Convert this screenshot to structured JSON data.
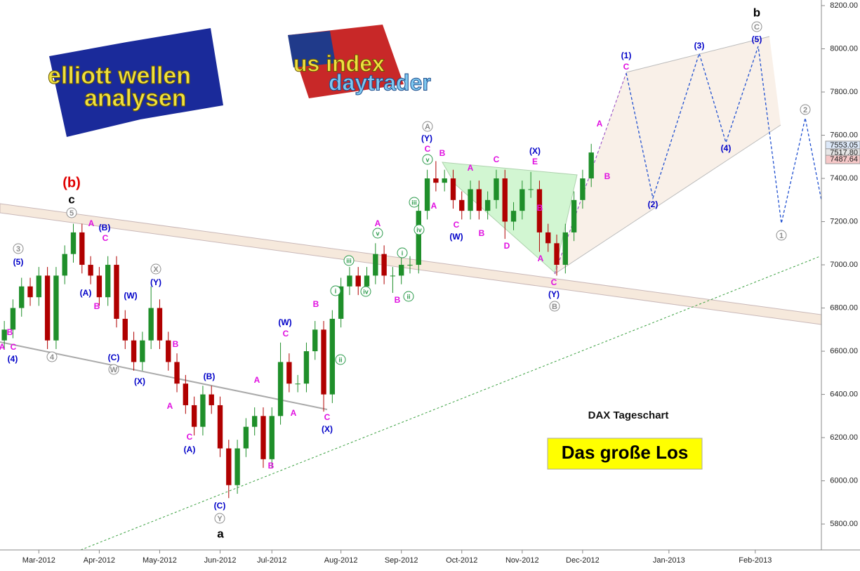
{
  "chart_data": {
    "type": "candlestick",
    "title": "DAX Tageschart",
    "headline": "Das große Los",
    "logos": [
      "elliott wellen",
      "analysen",
      "us index",
      "daytrader"
    ],
    "categories": [
      null,
      null,
      null,
      null,
      "Mar-2012",
      null,
      null,
      null,
      null,
      null,
      null,
      "Apr-2012",
      null,
      null,
      null,
      null,
      null,
      null,
      "May-2012",
      null,
      null,
      null,
      null,
      null,
      null,
      "Jun-2012",
      null,
      null,
      null,
      null,
      null,
      "Jul-2012",
      null,
      null,
      null,
      null,
      null,
      null,
      null,
      "Aug-2012",
      null,
      null,
      null,
      null,
      null,
      null,
      "Sep-2012",
      null,
      null,
      null,
      null,
      null,
      null,
      "Oct-2012",
      null,
      null,
      null,
      null,
      null,
      null,
      "Nov-2012",
      null,
      null,
      null,
      null,
      null,
      null,
      "Dec-2012",
      null,
      null,
      null,
      null,
      null,
      null,
      null,
      null,
      null,
      "Jan-2013",
      null,
      null,
      null,
      null,
      null,
      null,
      null,
      null,
      null,
      "Feb-2013",
      null,
      null,
      null,
      null,
      null,
      null,
      null
    ],
    "open": [
      6650,
      6700,
      6800,
      6900,
      6850,
      6950,
      6650,
      6950,
      7050,
      7150,
      7000,
      6950,
      6850,
      7000,
      6750,
      6650,
      6550,
      6650,
      6800,
      6650,
      6550,
      6450,
      6350,
      6250,
      6400,
      6350,
      6150,
      5980,
      6150,
      6250,
      6300,
      6100,
      6300,
      6550,
      6450,
      6450,
      6600,
      6700,
      6400,
      6750,
      6900,
      6950,
      6900,
      6950,
      7050,
      6950,
      6950,
      7000,
      7000,
      7250,
      7400,
      7380,
      7400,
      7300,
      7250,
      7350,
      7250,
      7300,
      7400,
      7200,
      7250,
      7350,
      7350,
      7150,
      7100,
      7000,
      7150,
      7300,
      7400,
      null,
      null,
      null,
      null,
      null,
      null,
      null,
      null,
      null,
      null,
      null,
      null,
      null,
      null,
      null,
      null,
      null,
      null,
      null,
      null,
      null,
      null,
      null,
      null,
      null,
      null
    ],
    "high": [
      6740,
      6840,
      6940,
      6940,
      6990,
      6990,
      6990,
      7090,
      7190,
      7190,
      7040,
      6990,
      7040,
      7040,
      6790,
      6690,
      6690,
      6900,
      6840,
      6690,
      6590,
      6490,
      6390,
      6440,
      6440,
      6390,
      6190,
      6190,
      6290,
      6340,
      6340,
      6340,
      6640,
      6590,
      6490,
      6640,
      6740,
      6740,
      6790,
      6940,
      6990,
      6990,
      6990,
      7100,
      7090,
      6990,
      7040,
      7040,
      7290,
      7440,
      7480,
      7440,
      7440,
      7340,
      7390,
      7390,
      7340,
      7440,
      7440,
      7290,
      7390,
      7430,
      7390,
      7190,
      7140,
      7190,
      7340,
      7440,
      7560,
      null,
      null,
      null,
      null,
      null,
      null,
      null,
      null,
      null,
      null,
      null,
      null,
      null,
      null,
      null,
      null,
      null,
      null,
      null,
      null,
      null,
      null,
      null,
      null,
      null,
      null
    ],
    "low": [
      6610,
      6660,
      6760,
      6810,
      6810,
      6610,
      6610,
      6910,
      7010,
      6960,
      6910,
      6810,
      6810,
      6710,
      6610,
      6510,
      6510,
      6610,
      6610,
      6510,
      6410,
      6310,
      6210,
      6210,
      6310,
      6110,
      5920,
      5940,
      6110,
      6210,
      6060,
      6060,
      6260,
      6410,
      6410,
      6410,
      6560,
      6320,
      6360,
      6710,
      6860,
      6860,
      6860,
      6910,
      6910,
      6870,
      6910,
      6960,
      6960,
      7210,
      7340,
      7340,
      7260,
      7210,
      7210,
      7210,
      7210,
      7260,
      7120,
      7160,
      7210,
      7310,
      7060,
      7060,
      6950,
      6960,
      7110,
      7260,
      7360,
      null,
      null,
      null,
      null,
      null,
      null,
      null,
      null,
      null,
      null,
      null,
      null,
      null,
      null,
      null,
      null,
      null,
      null,
      null,
      null,
      null,
      null,
      null,
      null,
      null,
      null
    ],
    "close": [
      6700,
      6800,
      6900,
      6850,
      6950,
      6650,
      6950,
      7050,
      7150,
      7000,
      6950,
      6850,
      7000,
      6750,
      6650,
      6550,
      6650,
      6800,
      6650,
      6550,
      6450,
      6350,
      6250,
      6400,
      6350,
      6150,
      5980,
      6150,
      6250,
      6300,
      6100,
      6300,
      6550,
      6450,
      6450,
      6600,
      6700,
      6400,
      6750,
      6900,
      6950,
      6900,
      6950,
      7050,
      6950,
      6950,
      7000,
      7000,
      7250,
      7400,
      7380,
      7400,
      7300,
      7250,
      7350,
      7250,
      7300,
      7400,
      7200,
      7250,
      7350,
      7350,
      7150,
      7100,
      7000,
      7150,
      7300,
      7400,
      7520,
      null,
      null,
      null,
      null,
      null,
      null,
      null,
      null,
      null,
      null,
      null,
      null,
      null,
      null,
      null,
      null,
      null,
      null,
      null,
      null,
      null,
      null,
      null,
      null,
      null,
      null
    ],
    "up_color": "#1f8f2a",
    "down_color": "#b00000",
    "ylim": [
      5680,
      8226
    ],
    "yticks": [
      {
        "value": 5800,
        "label": "5800.00"
      },
      {
        "value": 6000,
        "label": "6000.00"
      },
      {
        "value": 6200,
        "label": "6200.00"
      },
      {
        "value": 6400,
        "label": "6400.00"
      },
      {
        "value": 6600,
        "label": "6600.00"
      },
      {
        "value": 6800,
        "label": "6800.00"
      },
      {
        "value": 7000,
        "label": "7000.00"
      },
      {
        "value": 7200,
        "label": "7200.00"
      },
      {
        "value": 7400,
        "label": "7400.00"
      },
      {
        "value": 7600,
        "label": "7600.00"
      },
      {
        "value": 7800,
        "label": "7800.00"
      },
      {
        "value": 8000,
        "label": "8000.00"
      },
      {
        "value": 8200,
        "label": "8200.00"
      }
    ],
    "price_markers": [
      {
        "value": 7553.05,
        "label": "7553.05",
        "color": "#dce8f8"
      },
      {
        "value": 7517.8,
        "label": "7517.80",
        "color": "#e6e6e6"
      },
      {
        "value": 7487.64,
        "label": "7487.64",
        "color": "#f6c8c8"
      }
    ],
    "annotations": [
      {
        "color": "#e010e0",
        "circled": false,
        "labels": [
          "A",
          "B",
          "C",
          "A",
          "C",
          "B",
          "A",
          "B",
          "C",
          "A",
          "B",
          "C",
          "A",
          "B",
          "C",
          "A",
          "B",
          "C",
          "B",
          "A",
          "A",
          "C",
          "C",
          "B",
          "D",
          "E",
          "B",
          "A",
          "C",
          "A",
          "B",
          "C"
        ]
      },
      {
        "color": "#0000c8",
        "circled": false,
        "labels": [
          "(4)",
          "(5)",
          "(A)",
          "(B)",
          "(C)",
          "(W)",
          "(X)",
          "(Y)",
          "(B)",
          "(A)",
          "(C)",
          "(W)",
          "(X)",
          "(Y)",
          "(W)",
          "(X)",
          "(Y)",
          "(1)",
          "(2)",
          "(3)",
          "(4)",
          "(5)"
        ]
      },
      {
        "color": "#8c8c8c",
        "circled": true,
        "labels": [
          "5",
          "3",
          "X",
          "4",
          "W",
          "Y",
          "A",
          "B",
          "C",
          "2",
          "1"
        ]
      },
      {
        "color": "#2a9a4a",
        "circled": true,
        "labels": [
          "v",
          "iii",
          "iv",
          "i",
          "ii",
          "iii",
          "i",
          "iv",
          "ii",
          "v"
        ]
      },
      {
        "color": "#e00000",
        "circled": false,
        "labels": [
          "(b)"
        ]
      },
      {
        "color": "#000000",
        "circled": false,
        "labels": [
          "c",
          "a",
          "b"
        ]
      }
    ]
  }
}
